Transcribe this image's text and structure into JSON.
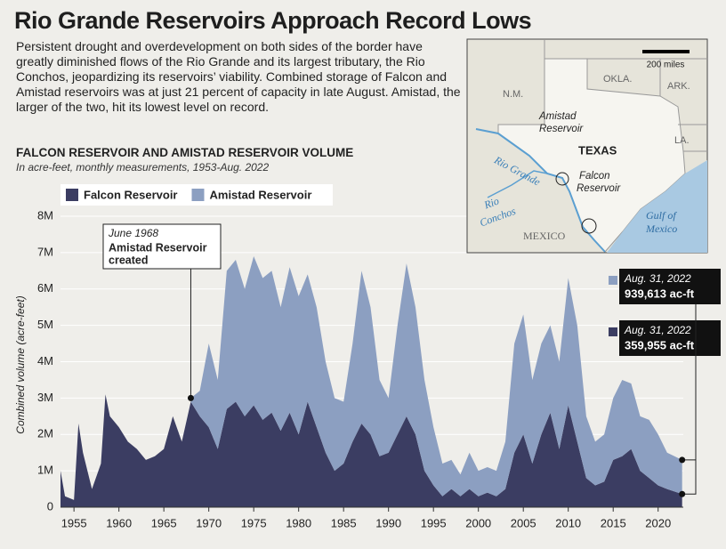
{
  "headline": "Rio Grande Reservoirs Approach Record Lows",
  "intro": "Persistent drought and overdevelopment on both sides of the border have greatly diminished flows of the Rio Grande and its largest tributary, the Rio Conchos, jeopardizing its reservoirs’ viability. Combined storage of Falcon and Amistad reservoirs was at just 21 percent of capacity in late August. Amistad, the larger of the two, hit its lowest level on record.",
  "map": {
    "scale": "200 miles",
    "labels": [
      "N.M.",
      "OKLA.",
      "ARK.",
      "TEXAS",
      "LA.",
      "Amistad",
      "Reservoir",
      "Falcon",
      "Reservoir",
      "Rio Grande",
      "Rio",
      "Conchos",
      "MEXICO",
      "Gulf of",
      "Mexico"
    ]
  },
  "chart_data": {
    "type": "area",
    "stacked": true,
    "title": "FALCON RESERVOIR AND AMISTAD RESERVOIR VOLUME",
    "subtitle": "In acre-feet, monthly measurements, 1953-Aug. 2022",
    "y_label": "Combined volume (acre-feet)",
    "x": [
      1953.5,
      1954,
      1955,
      1955.5,
      1956,
      1957,
      1958,
      1958.5,
      1959,
      1960,
      1961,
      1962,
      1963,
      1964,
      1965,
      1966,
      1967,
      1968,
      1969,
      1970,
      1971,
      1972,
      1973,
      1974,
      1975,
      1976,
      1977,
      1978,
      1979,
      1980,
      1981,
      1982,
      1983,
      1984,
      1985,
      1986,
      1987,
      1988,
      1989,
      1990,
      1991,
      1992,
      1993,
      1994,
      1995,
      1996,
      1997,
      1998,
      1999,
      2000,
      2001,
      2002,
      2003,
      2004,
      2005,
      2006,
      2007,
      2008,
      2009,
      2010,
      2011,
      2012,
      2013,
      2014,
      2015,
      2016,
      2017,
      2018,
      2019,
      2020,
      2021,
      2022.67
    ],
    "series": [
      {
        "name": "Falcon Reservoir",
        "color": "#3b3d62",
        "values": [
          1000000,
          300000,
          200000,
          2300000,
          1500000,
          500000,
          1200000,
          3100000,
          2500000,
          2200000,
          1800000,
          1600000,
          1300000,
          1400000,
          1600000,
          2500000,
          1800000,
          2900000,
          2500000,
          2200000,
          1600000,
          2700000,
          2900000,
          2500000,
          2800000,
          2400000,
          2600000,
          2100000,
          2600000,
          2000000,
          2900000,
          2200000,
          1500000,
          1000000,
          1200000,
          1800000,
          2300000,
          2000000,
          1400000,
          1500000,
          2000000,
          2500000,
          2000000,
          1000000,
          600000,
          300000,
          500000,
          300000,
          500000,
          300000,
          400000,
          300000,
          500000,
          1500000,
          2000000,
          1200000,
          2000000,
          2600000,
          1600000,
          2800000,
          1800000,
          800000,
          600000,
          700000,
          1300000,
          1400000,
          1600000,
          1000000,
          800000,
          600000,
          500000,
          359955
        ],
        "last_date": "Aug. 31, 2022",
        "last_label": "359,955 ac-ft"
      },
      {
        "name": "Amistad Reservoir",
        "color": "#8c9fc1",
        "values": [
          null,
          null,
          null,
          null,
          null,
          null,
          null,
          null,
          null,
          null,
          null,
          null,
          null,
          null,
          null,
          null,
          null,
          100000,
          700000,
          2300000,
          1900000,
          3800000,
          3900000,
          3500000,
          4100000,
          3900000,
          3900000,
          3400000,
          4000000,
          3800000,
          3500000,
          3300000,
          2500000,
          2000000,
          1700000,
          2700000,
          4200000,
          3500000,
          2100000,
          1500000,
          3000000,
          4200000,
          3500000,
          2500000,
          1600000,
          900000,
          800000,
          600000,
          1000000,
          700000,
          700000,
          700000,
          1300000,
          3000000,
          3300000,
          2300000,
          2500000,
          2400000,
          2400000,
          3500000,
          3200000,
          1700000,
          1200000,
          1300000,
          1700000,
          2100000,
          1800000,
          1500000,
          1600000,
          1400000,
          1000000,
          939613
        ],
        "last_date": "Aug. 31, 2022",
        "last_label": "939,613 ac-ft"
      }
    ],
    "xlim": [
      1953.5,
      2022.8
    ],
    "xticks": [
      1955,
      1960,
      1965,
      1970,
      1975,
      1980,
      1985,
      1990,
      1995,
      2000,
      2005,
      2010,
      2015,
      2020
    ],
    "ylim": [
      0,
      8000000
    ],
    "yticks": [
      0,
      {
        "value": 1000000,
        "label": "1M"
      },
      {
        "value": 2000000,
        "label": "2M"
      },
      {
        "value": 3000000,
        "label": "3M"
      },
      {
        "value": 4000000,
        "label": "4M"
      },
      {
        "value": 5000000,
        "label": "5M"
      },
      {
        "value": 6000000,
        "label": "6M"
      },
      {
        "value": 7000000,
        "label": "7M"
      },
      {
        "value": 8000000,
        "label": "8M"
      }
    ],
    "grid": true,
    "annotations": [
      {
        "x": 1968,
        "date": "June 1968",
        "lines": [
          "Amistad Reservoir",
          "created"
        ]
      }
    ]
  }
}
